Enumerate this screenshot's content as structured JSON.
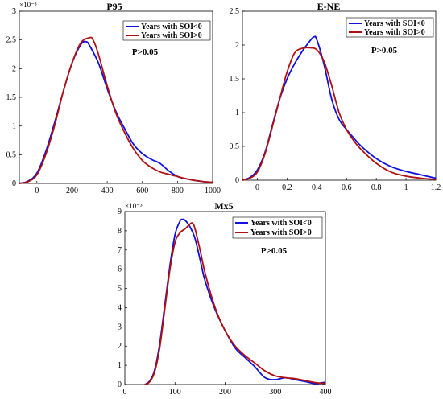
{
  "chart_data": [
    {
      "type": "line",
      "title": "P95",
      "exponent_label": "×10⁻³",
      "annotation": "P>0.05",
      "xlim": [
        -100,
        1000
      ],
      "ylim": [
        0,
        3
      ],
      "x_ticks": [
        0,
        200,
        400,
        600,
        800,
        1000
      ],
      "x_tick_labels": [
        "0",
        "200",
        "400",
        "600",
        "800",
        "1000"
      ],
      "y_ticks": [
        0,
        0.5,
        1,
        1.5,
        2,
        2.5,
        3
      ],
      "y_tick_labels": [
        "0",
        "0.5",
        "1",
        "1.5",
        "2",
        "2.5",
        "3"
      ],
      "series": [
        {
          "name": "Years with SOI<0",
          "color": "#1010e0",
          "x": [
            -100,
            -50,
            0,
            50,
            100,
            150,
            200,
            250,
            280,
            300,
            350,
            400,
            450,
            500,
            550,
            600,
            650,
            700,
            750,
            800,
            850,
            900,
            950,
            1000
          ],
          "y": [
            0,
            0.04,
            0.18,
            0.55,
            1.05,
            1.6,
            2.1,
            2.42,
            2.47,
            2.4,
            2.1,
            1.65,
            1.25,
            0.95,
            0.68,
            0.52,
            0.42,
            0.35,
            0.22,
            0.12,
            0.08,
            0.05,
            0.03,
            0.02
          ]
        },
        {
          "name": "Years with SOI>0",
          "color": "#b01010",
          "x": [
            -100,
            -50,
            0,
            50,
            100,
            150,
            200,
            250,
            300,
            320,
            350,
            400,
            450,
            500,
            550,
            600,
            650,
            700,
            750,
            800,
            850,
            900,
            950,
            1000
          ],
          "y": [
            0,
            0.03,
            0.15,
            0.5,
            1.0,
            1.6,
            2.1,
            2.45,
            2.54,
            2.5,
            2.25,
            1.7,
            1.22,
            0.88,
            0.6,
            0.4,
            0.28,
            0.2,
            0.16,
            0.12,
            0.08,
            0.05,
            0.03,
            0.02
          ]
        }
      ]
    },
    {
      "type": "line",
      "title": "E-NE",
      "annotation": "P>0.05",
      "xlim": [
        -0.1,
        1.2
      ],
      "ylim": [
        0,
        2.5
      ],
      "x_ticks": [
        0,
        0.2,
        0.4,
        0.6,
        0.8,
        1,
        1.2
      ],
      "x_tick_labels": [
        "0",
        "0.2",
        "0.4",
        "0.6",
        "0.8",
        "1",
        "1.2"
      ],
      "y_ticks": [
        0,
        0.5,
        1,
        1.5,
        2,
        2.5
      ],
      "y_tick_labels": [
        "0",
        "0.5",
        "1",
        "1.5",
        "2",
        "2.5"
      ],
      "series": [
        {
          "name": "Years with SOI<0",
          "color": "#1010e0",
          "x": [
            -0.1,
            -0.05,
            0,
            0.05,
            0.1,
            0.15,
            0.2,
            0.25,
            0.3,
            0.35,
            0.38,
            0.4,
            0.45,
            0.5,
            0.55,
            0.6,
            0.65,
            0.7,
            0.8,
            0.9,
            1.0,
            1.1,
            1.2
          ],
          "y": [
            0,
            0.04,
            0.15,
            0.4,
            0.8,
            1.2,
            1.5,
            1.72,
            1.9,
            2.05,
            2.12,
            2.08,
            1.7,
            1.2,
            0.9,
            0.75,
            0.62,
            0.5,
            0.32,
            0.2,
            0.13,
            0.08,
            0.03
          ]
        },
        {
          "name": "Years with SOI>0",
          "color": "#b01010",
          "x": [
            -0.1,
            -0.05,
            0,
            0.05,
            0.1,
            0.15,
            0.2,
            0.25,
            0.3,
            0.35,
            0.4,
            0.45,
            0.5,
            0.55,
            0.6,
            0.65,
            0.7,
            0.8,
            0.9,
            1.0,
            1.1,
            1.2
          ],
          "y": [
            0,
            0.03,
            0.12,
            0.38,
            0.78,
            1.2,
            1.6,
            1.88,
            1.95,
            1.96,
            1.93,
            1.75,
            1.4,
            1.0,
            0.75,
            0.58,
            0.45,
            0.25,
            0.12,
            0.06,
            0.03,
            0.01
          ]
        }
      ]
    },
    {
      "type": "line",
      "title": "Mx5",
      "exponent_label": "×10⁻³",
      "annotation": "P>0.05",
      "xlim": [
        0,
        400
      ],
      "ylim": [
        0,
        9
      ],
      "x_ticks": [
        0,
        100,
        200,
        300,
        400
      ],
      "x_tick_labels": [
        "0",
        "100",
        "200",
        "300",
        "400"
      ],
      "y_ticks": [
        0,
        1,
        2,
        3,
        4,
        5,
        6,
        7,
        8,
        9
      ],
      "y_tick_labels": [
        "0",
        "1",
        "2",
        "3",
        "4",
        "5",
        "6",
        "7",
        "8",
        "9"
      ],
      "series": [
        {
          "name": "Years with SOI<0",
          "color": "#1010e0",
          "x": [
            40,
            50,
            60,
            70,
            80,
            90,
            100,
            110,
            115,
            120,
            130,
            140,
            150,
            160,
            180,
            200,
            220,
            240,
            260,
            280,
            300,
            320,
            340,
            360,
            380,
            400
          ],
          "y": [
            0,
            0.2,
            0.8,
            2.2,
            4.2,
            6.2,
            7.8,
            8.5,
            8.6,
            8.55,
            8.2,
            7.6,
            6.5,
            5.4,
            3.9,
            2.8,
            1.9,
            1.4,
            0.9,
            0.35,
            0.25,
            0.35,
            0.25,
            0.15,
            0.05,
            0.12
          ]
        },
        {
          "name": "Years with SOI>0",
          "color": "#b01010",
          "x": [
            40,
            50,
            60,
            70,
            80,
            90,
            100,
            110,
            120,
            130,
            135,
            140,
            150,
            160,
            180,
            200,
            220,
            240,
            260,
            280,
            300,
            320,
            340,
            360,
            380,
            400
          ],
          "y": [
            0,
            0.15,
            0.7,
            2.0,
            4.0,
            6.0,
            7.4,
            7.9,
            8.1,
            8.35,
            8.4,
            8.1,
            7.0,
            5.8,
            4.0,
            2.8,
            2.0,
            1.5,
            1.1,
            0.7,
            0.45,
            0.35,
            0.3,
            0.2,
            0.1,
            0.05
          ]
        }
      ]
    }
  ]
}
